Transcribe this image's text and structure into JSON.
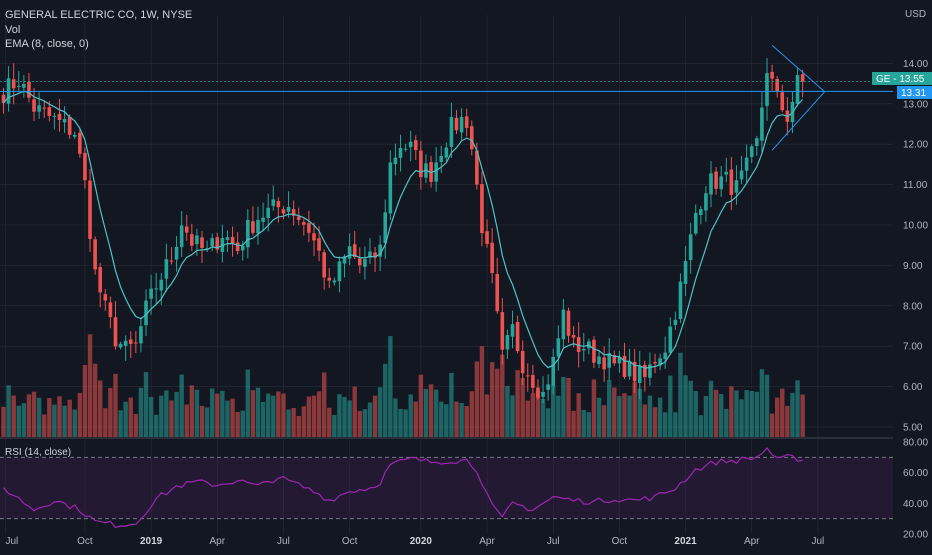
{
  "header": {
    "symbol_line": "GENERAL ELECTRIC CO, 1W, NYSE",
    "vol_label": "Vol",
    "ema_label": "EMA (8, close, 0)"
  },
  "currency": "USD",
  "tags": {
    "ge_label": "GE - 13.55",
    "line_label": "13.31"
  },
  "rsi": {
    "label": "RSI (14, close)",
    "upper": 70,
    "lower": 30,
    "ticks": [
      "80.00",
      "60.00",
      "40.00",
      "20.00"
    ]
  },
  "colors": {
    "background": "#131722",
    "up": "#26a69a",
    "down": "#ef5350",
    "ema": "#4fc3c7",
    "line": "#2196f3",
    "rsi": "#9c27b0",
    "grid": "#2a2e39",
    "text": "#b2b5be"
  },
  "chart_data": [
    {
      "type": "candlestick",
      "title": "GENERAL ELECTRIC CO, 1W, NYSE",
      "ylim": [
        4.75,
        15.2
      ],
      "y_ticks": [
        "14.00",
        "13.00",
        "12.00",
        "11.00",
        "10.00",
        "9.00",
        "8.00",
        "7.00",
        "6.00",
        "5.00"
      ],
      "x_ticks": [
        "Jul",
        "Oct",
        "2019",
        "Apr",
        "Jul",
        "Oct",
        "2020",
        "Apr",
        "Jul",
        "Oct",
        "2021",
        "Apr",
        "Jul"
      ],
      "last_price": 13.55,
      "horizontal_line": 13.31,
      "anchors": [
        [
          0,
          13.3
        ],
        [
          3,
          13.6
        ],
        [
          6,
          12.9
        ],
        [
          10,
          12.6
        ],
        [
          14,
          12.3
        ],
        [
          16,
          11.0
        ],
        [
          18,
          8.8
        ],
        [
          20,
          7.9
        ],
        [
          22,
          7.2
        ],
        [
          24,
          6.9
        ],
        [
          26,
          7.0
        ],
        [
          28,
          7.9
        ],
        [
          30,
          8.5
        ],
        [
          33,
          9.2
        ],
        [
          35,
          10.1
        ],
        [
          37,
          9.6
        ],
        [
          40,
          9.3
        ],
        [
          43,
          9.8
        ],
        [
          46,
          9.4
        ],
        [
          48,
          9.9
        ],
        [
          50,
          10.2
        ],
        [
          53,
          10.4
        ],
        [
          56,
          10.5
        ],
        [
          58,
          10.2
        ],
        [
          60,
          9.9
        ],
        [
          62,
          9.3
        ],
        [
          64,
          8.4
        ],
        [
          66,
          8.9
        ],
        [
          68,
          9.4
        ],
        [
          70,
          9.0
        ],
        [
          72,
          9.1
        ],
        [
          74,
          9.4
        ],
        [
          76,
          11.5
        ],
        [
          78,
          12.0
        ],
        [
          80,
          11.9
        ],
        [
          82,
          11.4
        ],
        [
          84,
          11.3
        ],
        [
          86,
          11.9
        ],
        [
          88,
          12.4
        ],
        [
          90,
          12.6
        ],
        [
          91,
          12.6
        ],
        [
          92,
          11.9
        ],
        [
          94,
          10.0
        ],
        [
          96,
          8.6
        ],
        [
          98,
          6.7
        ],
        [
          100,
          7.4
        ],
        [
          102,
          6.6
        ],
        [
          104,
          6.2
        ],
        [
          106,
          5.8
        ],
        [
          108,
          6.6
        ],
        [
          110,
          7.8
        ],
        [
          112,
          7.0
        ],
        [
          114,
          7.0
        ],
        [
          116,
          6.8
        ],
        [
          118,
          6.7
        ],
        [
          120,
          6.5
        ],
        [
          122,
          6.5
        ],
        [
          124,
          6.3
        ],
        [
          126,
          6.2
        ],
        [
          128,
          6.7
        ],
        [
          130,
          7.0
        ],
        [
          132,
          7.9
        ],
        [
          134,
          9.0
        ],
        [
          136,
          10.3
        ],
        [
          138,
          11.0
        ],
        [
          140,
          11.1
        ],
        [
          142,
          11.1
        ],
        [
          144,
          10.9
        ],
        [
          146,
          11.4
        ],
        [
          148,
          12.0
        ],
        [
          150,
          13.9
        ],
        [
          152,
          13.1
        ],
        [
          154,
          12.7
        ],
        [
          156,
          13.5
        ],
        [
          157,
          13.55
        ]
      ],
      "rsi_anchors": [
        [
          0,
          50
        ],
        [
          6,
          36
        ],
        [
          10,
          42
        ],
        [
          15,
          36
        ],
        [
          18,
          28
        ],
        [
          22,
          26
        ],
        [
          26,
          27
        ],
        [
          30,
          43
        ],
        [
          34,
          51
        ],
        [
          38,
          54
        ],
        [
          42,
          52
        ],
        [
          46,
          55
        ],
        [
          50,
          51
        ],
        [
          54,
          57
        ],
        [
          58,
          52
        ],
        [
          62,
          46
        ],
        [
          64,
          42
        ],
        [
          68,
          48
        ],
        [
          72,
          50
        ],
        [
          74,
          54
        ],
        [
          76,
          65
        ],
        [
          80,
          69
        ],
        [
          84,
          67
        ],
        [
          88,
          68
        ],
        [
          91,
          68
        ],
        [
          93,
          62
        ],
        [
          96,
          38
        ],
        [
          98,
          30
        ],
        [
          100,
          40
        ],
        [
          104,
          36
        ],
        [
          108,
          44
        ],
        [
          112,
          42
        ],
        [
          116,
          41
        ],
        [
          120,
          43
        ],
        [
          124,
          42
        ],
        [
          128,
          44
        ],
        [
          132,
          50
        ],
        [
          136,
          62
        ],
        [
          140,
          67
        ],
        [
          144,
          68
        ],
        [
          148,
          70
        ],
        [
          150,
          76
        ],
        [
          152,
          68
        ],
        [
          154,
          70
        ],
        [
          157,
          69
        ]
      ]
    }
  ]
}
